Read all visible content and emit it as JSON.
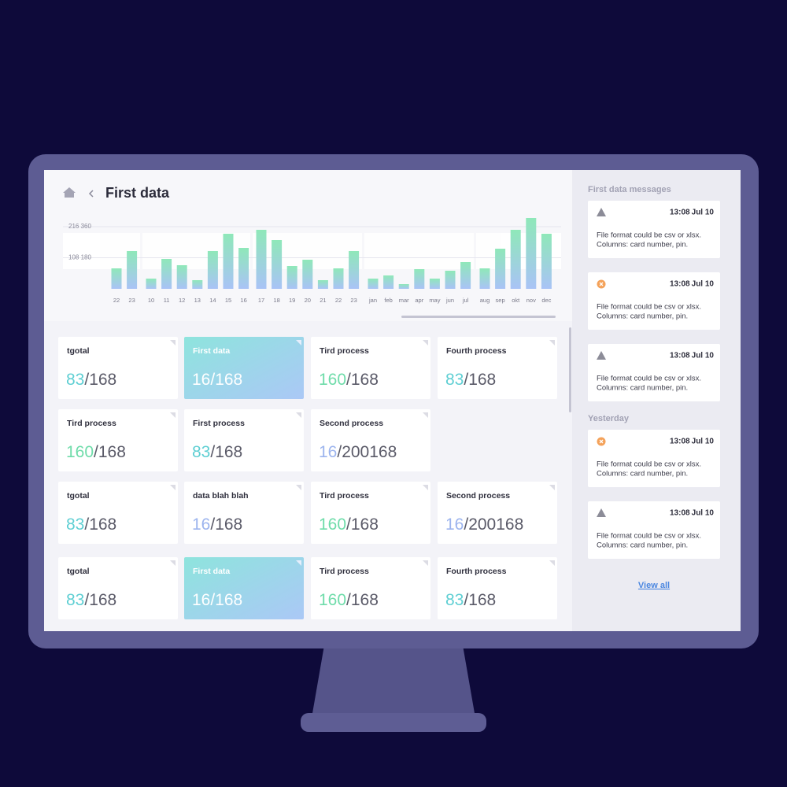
{
  "header": {
    "title": "First data"
  },
  "chart": {
    "type": "bar",
    "ylim": [
      0,
      250000
    ],
    "yticks": [
      {
        "value": 108180,
        "label": "108 180"
      },
      {
        "value": 216360,
        "label": "216 360"
      }
    ],
    "groups": [
      {
        "categories": [
          "22",
          "23"
        ],
        "values": [
          71200,
          131500
        ]
      },
      {
        "categories": [
          "10",
          "11",
          "12",
          "13",
          "14",
          "15",
          "16"
        ],
        "values": [
          35600,
          104100,
          82200,
          30100,
          131500,
          191700,
          142400
        ]
      },
      {
        "categories": [
          "17",
          "18",
          "19",
          "20",
          "21",
          "22",
          "23"
        ],
        "values": [
          205400,
          169800,
          79400,
          101300,
          30100,
          71200,
          131500
        ]
      },
      {
        "categories": [
          "jan",
          "feb",
          "mar",
          "apr",
          "may",
          "jun",
          "jul"
        ],
        "values": [
          35600,
          46600,
          16400,
          68500,
          35600,
          63000,
          93100
        ]
      },
      {
        "categories": [
          "aug",
          "sep",
          "okt",
          "nov",
          "dec"
        ],
        "values": [
          71200,
          139700,
          205400,
          246500,
          191700
        ]
      }
    ]
  },
  "cards": [
    [
      {
        "title": "tgotal",
        "value": "83",
        "of": "/168",
        "color": "#5fcfd3"
      },
      {
        "title": "First data",
        "value": "16",
        "of": "/168",
        "color": "#ffffff",
        "highlighted": true
      },
      {
        "title": "Tird process",
        "value": "160",
        "of": "/168",
        "color": "#6fdcaa"
      },
      {
        "title": "Fourth process",
        "value": "83",
        "of": "/168",
        "color": "#5fcfd3"
      }
    ],
    [
      {
        "title": "Tird process",
        "value": "160",
        "of": "/168",
        "color": "#6fdcaa"
      },
      {
        "title": "First process",
        "value": "83",
        "of": "/168",
        "color": "#5fcfd3"
      },
      {
        "title": "Second process",
        "value": "16",
        "of": "/200168",
        "color": "#9cb4ee"
      }
    ],
    [
      {
        "title": "tgotal",
        "value": "83",
        "of": "/168",
        "color": "#5fcfd3"
      },
      {
        "title": "data blah blah",
        "value": "16",
        "of": "/168",
        "color": "#9cb4ee"
      },
      {
        "title": "Tird process",
        "value": "160",
        "of": "/168",
        "color": "#6fdcaa"
      },
      {
        "title": "Second process",
        "value": "16",
        "of": "/200168",
        "color": "#9cb4ee"
      }
    ],
    [
      {
        "title": "tgotal",
        "value": "83",
        "of": "/168",
        "color": "#5fcfd3"
      },
      {
        "title": "First data",
        "value": "16",
        "of": "/168",
        "color": "#ffffff",
        "highlighted": true
      },
      {
        "title": "Tird process",
        "value": "160",
        "of": "/168",
        "color": "#6fdcaa"
      },
      {
        "title": "Fourth process",
        "value": "83",
        "of": "/168",
        "color": "#5fcfd3"
      }
    ]
  ],
  "messages": [
    {
      "title": "First data messages",
      "items": [
        {
          "icon": "warning",
          "time": "13:08",
          "date": "Jul 10",
          "lines": [
            "File format could be csv or xlsx.",
            "Columns: card number, pin."
          ]
        },
        {
          "icon": "error",
          "time": "13:08",
          "date": "Jul 10",
          "lines": [
            "File format could be csv or xlsx.",
            "Columns: card number, pin."
          ]
        },
        {
          "icon": "warning",
          "time": "13:08",
          "date": "Jul 10",
          "lines": [
            "File format could be csv or xlsx.",
            "Columns: card number, pin."
          ]
        }
      ]
    },
    {
      "title": "Yesterday",
      "items": [
        {
          "icon": "error",
          "time": "13:08",
          "date": "Jul 10",
          "lines": [
            "File format could be csv or xlsx.",
            "Columns: card number, pin."
          ]
        },
        {
          "icon": "warning",
          "time": "13:08",
          "date": "Jul 10",
          "lines": [
            "File format could be csv or xlsx.",
            "Columns: card number, pin."
          ]
        }
      ]
    }
  ],
  "view_all": "View all"
}
